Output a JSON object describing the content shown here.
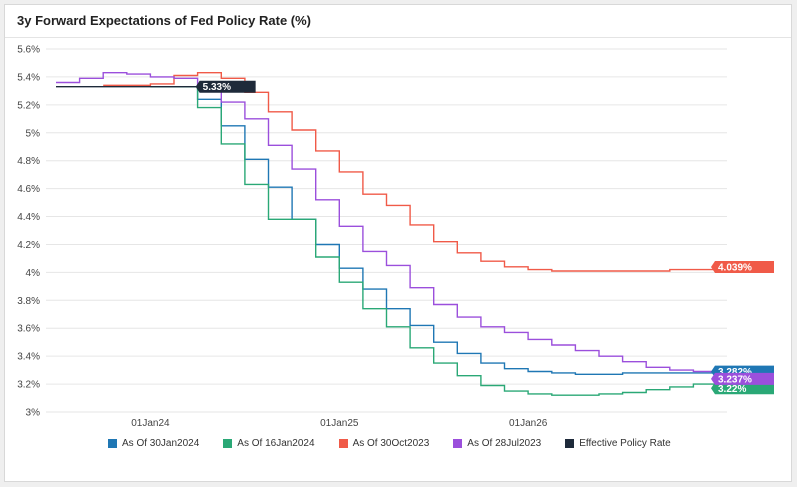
{
  "chart_data": {
    "type": "line",
    "title": "3y Forward Expectations of Fed Policy Rate (%)",
    "xlabel": "",
    "ylabel": "",
    "ylim": [
      3.0,
      5.6
    ],
    "y_ticks": [
      "5.6%",
      "5.4%",
      "5.2%",
      "5%",
      "4.8%",
      "4.6%",
      "4.4%",
      "4.2%",
      "4%",
      "3.8%",
      "3.6%",
      "3.4%",
      "3.2%",
      "3%"
    ],
    "x_ticks": [
      "01Jan24",
      "01Jan25",
      "01Jan26"
    ],
    "x_tick_positions": [
      2024.0,
      2025.0,
      2026.0
    ],
    "xlim": [
      2023.5,
      2027.0
    ],
    "grid": "horizontal",
    "legend_position": "bottom",
    "series": [
      {
        "name": "As Of 30Jan2024",
        "color": "#1f77b4",
        "x_start": 2024.0,
        "step": 0.125,
        "values": [
          5.33,
          5.33,
          5.24,
          5.05,
          4.81,
          4.61,
          4.38,
          4.2,
          4.03,
          3.88,
          3.74,
          3.62,
          3.5,
          3.42,
          3.35,
          3.31,
          3.29,
          3.28,
          3.27,
          3.27,
          3.28,
          3.28,
          3.28,
          3.28,
          3.282
        ],
        "end_label": "3.282%"
      },
      {
        "name": "As Of 16Jan2024",
        "color": "#2aa876",
        "x_start": 2024.0,
        "step": 0.125,
        "values": [
          5.33,
          5.33,
          5.18,
          4.92,
          4.63,
          4.38,
          4.38,
          4.11,
          3.93,
          3.74,
          3.61,
          3.46,
          3.35,
          3.26,
          3.19,
          3.15,
          3.13,
          3.12,
          3.12,
          3.13,
          3.14,
          3.16,
          3.18,
          3.2,
          3.22
        ],
        "end_label": "3.22%"
      },
      {
        "name": "As Of 30Oct2023",
        "color": "#f05a48",
        "x_start": 2023.75,
        "step": 0.125,
        "values": [
          5.34,
          5.34,
          5.35,
          5.41,
          5.43,
          5.39,
          5.29,
          5.15,
          5.02,
          4.87,
          4.72,
          4.56,
          4.48,
          4.34,
          4.22,
          4.14,
          4.08,
          4.04,
          4.02,
          4.01,
          4.01,
          4.01,
          4.01,
          4.01,
          4.02,
          4.02,
          4.03,
          4.039
        ],
        "end_label": "4.039%"
      },
      {
        "name": "As Of 28Jul2023",
        "color": "#9b4fdc",
        "x_start": 2023.5,
        "step": 0.125,
        "values": [
          5.36,
          5.39,
          5.43,
          5.42,
          5.4,
          5.39,
          5.34,
          5.22,
          5.1,
          4.91,
          4.74,
          4.52,
          4.33,
          4.15,
          4.05,
          3.89,
          3.77,
          3.68,
          3.61,
          3.57,
          3.52,
          3.48,
          3.44,
          3.4,
          3.36,
          3.32,
          3.3,
          3.29,
          3.27,
          3.237
        ],
        "end_label": "3.237%"
      },
      {
        "name": "Effective Policy Rate",
        "color": "#1e2a3a",
        "x_start": 2023.5,
        "step": 0.125,
        "values": [
          5.33,
          5.33,
          5.33,
          5.33,
          5.33,
          5.33
        ],
        "end_label": "5.33%"
      }
    ]
  }
}
